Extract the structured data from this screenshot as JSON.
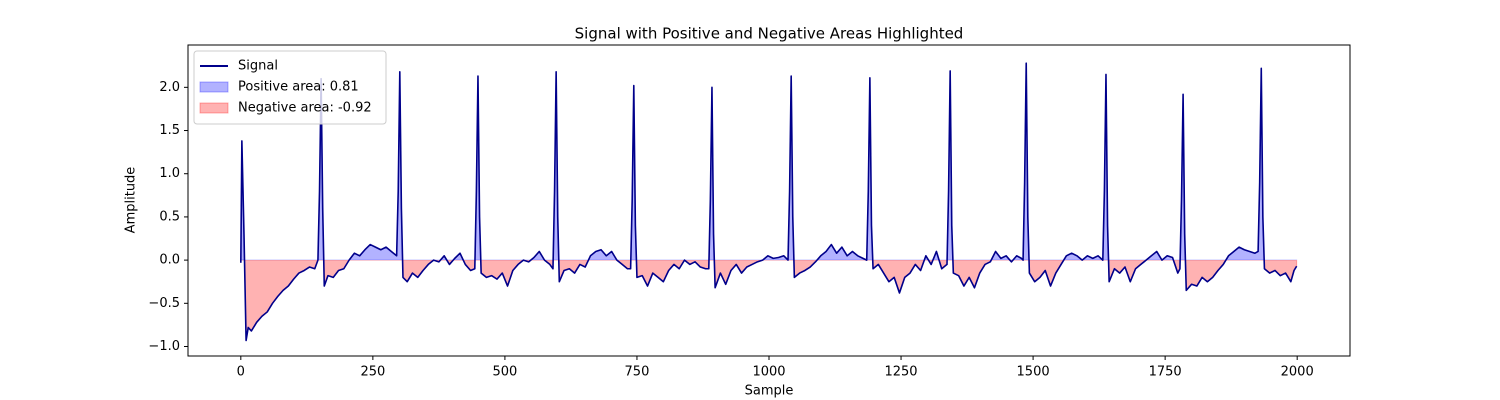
{
  "chart_data": {
    "type": "line",
    "title": "Signal with Positive and Negative Areas Highlighted",
    "xlabel": "Sample",
    "ylabel": "Amplitude",
    "xlim": [
      -100,
      2100
    ],
    "ylim": [
      -1.11,
      2.49
    ],
    "xticks": [
      0,
      250,
      500,
      750,
      1000,
      1250,
      1500,
      1750,
      2000
    ],
    "yticks": [
      {
        "value": -1.0,
        "label": "−1.0"
      },
      {
        "value": -0.5,
        "label": "−0.5"
      },
      {
        "value": 0,
        "label": "0.0"
      },
      {
        "value": 0.5,
        "label": "0.5"
      },
      {
        "value": 1.0,
        "label": "1.0"
      },
      {
        "value": 1.5,
        "label": "1.5"
      },
      {
        "value": 2.0,
        "label": "2.0"
      }
    ],
    "grid": false,
    "legend": "upper left",
    "x": [
      0,
      2,
      6,
      10,
      14,
      20,
      30,
      40,
      50,
      60,
      70,
      80,
      90,
      100,
      110,
      120,
      130,
      140,
      146,
      149,
      152,
      155,
      158,
      165,
      175,
      185,
      195,
      205,
      215,
      225,
      235,
      245,
      255,
      265,
      275,
      285,
      295,
      298,
      301,
      304,
      307,
      315,
      325,
      335,
      345,
      355,
      365,
      375,
      385,
      395,
      405,
      415,
      425,
      435,
      443,
      446,
      449,
      452,
      455,
      465,
      475,
      485,
      495,
      505,
      515,
      525,
      535,
      545,
      555,
      565,
      575,
      585,
      591,
      594,
      597,
      600,
      603,
      612,
      622,
      632,
      642,
      652,
      662,
      672,
      682,
      692,
      702,
      712,
      722,
      732,
      738,
      741,
      744,
      747,
      750,
      760,
      770,
      780,
      790,
      800,
      810,
      820,
      830,
      840,
      850,
      860,
      870,
      880,
      886,
      889,
      892,
      895,
      898,
      908,
      918,
      928,
      938,
      948,
      958,
      968,
      978,
      988,
      998,
      1008,
      1018,
      1028,
      1036,
      1039,
      1042,
      1045,
      1048,
      1058,
      1068,
      1078,
      1088,
      1098,
      1108,
      1118,
      1128,
      1138,
      1148,
      1158,
      1168,
      1178,
      1185,
      1188,
      1191,
      1194,
      1197,
      1207,
      1217,
      1227,
      1237,
      1247,
      1257,
      1267,
      1277,
      1287,
      1297,
      1307,
      1317,
      1327,
      1337,
      1340,
      1343,
      1346,
      1349,
      1359,
      1369,
      1379,
      1389,
      1399,
      1409,
      1419,
      1429,
      1439,
      1449,
      1459,
      1469,
      1478,
      1481,
      1484,
      1487,
      1490,
      1493,
      1503,
      1513,
      1523,
      1533,
      1543,
      1553,
      1563,
      1573,
      1583,
      1593,
      1603,
      1613,
      1623,
      1632,
      1635,
      1638,
      1641,
      1644,
      1654,
      1664,
      1674,
      1684,
      1694,
      1704,
      1714,
      1724,
      1734,
      1744,
      1754,
      1764,
      1774,
      1778,
      1781,
      1784,
      1787,
      1790,
      1800,
      1810,
      1820,
      1830,
      1840,
      1850,
      1860,
      1870,
      1880,
      1890,
      1900,
      1910,
      1920,
      1926,
      1929,
      1932,
      1935,
      1938,
      1948,
      1958,
      1968,
      1978,
      1988,
      1994,
      1999
    ],
    "series": [
      {
        "name": "Signal",
        "color": "#00008b",
        "values": [
          -0.03,
          1.38,
          0.3,
          -0.93,
          -0.78,
          -0.82,
          -0.72,
          -0.65,
          -0.6,
          -0.5,
          -0.42,
          -0.35,
          -0.3,
          -0.22,
          -0.15,
          -0.12,
          -0.08,
          -0.1,
          0.0,
          0.8,
          2.1,
          0.6,
          -0.3,
          -0.18,
          -0.2,
          -0.12,
          -0.1,
          0.0,
          0.08,
          0.05,
          0.12,
          0.18,
          0.15,
          0.12,
          0.15,
          0.1,
          0.05,
          0.8,
          2.18,
          0.6,
          -0.2,
          -0.25,
          -0.15,
          -0.2,
          -0.12,
          -0.05,
          0.0,
          -0.02,
          0.05,
          -0.05,
          0.02,
          0.08,
          -0.05,
          -0.12,
          -0.1,
          0.8,
          2.13,
          0.5,
          -0.15,
          -0.2,
          -0.18,
          -0.22,
          -0.15,
          -0.3,
          -0.12,
          -0.05,
          0.0,
          -0.02,
          0.03,
          0.1,
          0.0,
          -0.05,
          -0.1,
          0.8,
          2.18,
          0.5,
          -0.25,
          -0.12,
          -0.1,
          -0.15,
          -0.05,
          -0.08,
          0.05,
          0.1,
          0.12,
          0.05,
          0.1,
          0.0,
          -0.05,
          -0.1,
          -0.1,
          0.7,
          2.02,
          0.4,
          -0.2,
          -0.18,
          -0.3,
          -0.15,
          -0.2,
          -0.25,
          -0.12,
          -0.05,
          -0.1,
          0.0,
          -0.05,
          -0.02,
          -0.08,
          -0.1,
          -0.1,
          0.7,
          2.0,
          0.3,
          -0.32,
          -0.15,
          -0.28,
          -0.12,
          -0.05,
          -0.15,
          -0.08,
          -0.05,
          -0.02,
          0.0,
          0.05,
          0.02,
          0.03,
          0.05,
          0.0,
          0.8,
          2.13,
          0.5,
          -0.2,
          -0.15,
          -0.12,
          -0.08,
          -0.02,
          0.05,
          0.1,
          0.18,
          0.08,
          0.15,
          0.05,
          0.1,
          0.05,
          0.02,
          0.0,
          0.8,
          2.11,
          0.4,
          -0.1,
          -0.05,
          -0.15,
          -0.25,
          -0.2,
          -0.38,
          -0.2,
          -0.15,
          -0.05,
          -0.12,
          0.05,
          -0.05,
          0.1,
          -0.1,
          -0.05,
          0.8,
          2.19,
          0.4,
          -0.15,
          -0.18,
          -0.3,
          -0.2,
          -0.32,
          -0.15,
          -0.05,
          -0.02,
          0.1,
          0.02,
          0.05,
          -0.02,
          0.05,
          0.02,
          0.0,
          0.9,
          2.28,
          0.5,
          -0.15,
          -0.25,
          -0.2,
          -0.12,
          -0.3,
          -0.15,
          -0.05,
          0.05,
          0.08,
          0.05,
          0.0,
          0.05,
          0.02,
          0.05,
          0.0,
          0.8,
          2.15,
          0.4,
          -0.25,
          -0.1,
          -0.15,
          -0.08,
          -0.25,
          -0.1,
          -0.05,
          0.0,
          0.05,
          0.1,
          0.0,
          0.05,
          0.03,
          -0.15,
          -0.1,
          0.7,
          1.92,
          0.3,
          -0.35,
          -0.28,
          -0.3,
          -0.2,
          -0.25,
          -0.2,
          -0.12,
          -0.05,
          0.05,
          0.1,
          0.15,
          0.12,
          0.1,
          0.08,
          0.1,
          0.9,
          2.22,
          0.5,
          -0.1,
          -0.15,
          -0.12,
          -0.18,
          -0.15,
          -0.25,
          -0.12,
          -0.07
        ]
      }
    ],
    "fills": [
      {
        "name": "Positive area: 0.81",
        "color": "#0000ff",
        "sign": "positive"
      },
      {
        "name": "Negative area: -0.92",
        "color": "#ff0000",
        "sign": "negative"
      }
    ]
  }
}
